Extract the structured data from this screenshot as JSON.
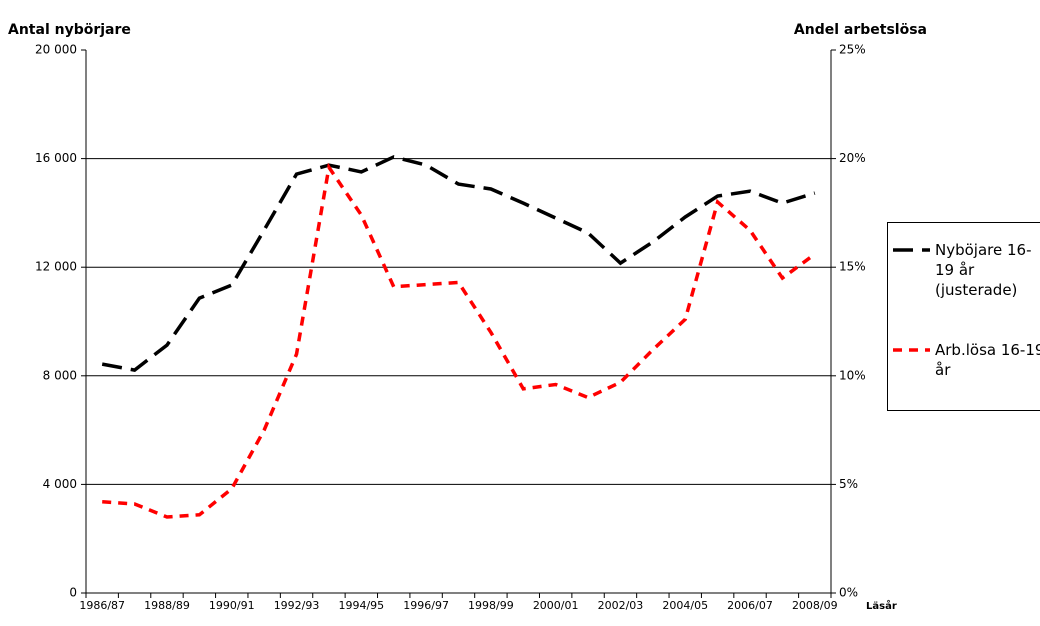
{
  "chart_data": {
    "type": "line",
    "y_label": "Antal nybörjare",
    "y2_label": "Andel arbetslösa",
    "x_label": "Läsår",
    "categories": [
      "1986/87",
      null,
      "1988/89",
      null,
      "1990/91",
      null,
      "1992/93",
      null,
      "1994/95",
      null,
      "1996/97",
      null,
      "1998/99",
      null,
      "2000/01",
      null,
      "2002/03",
      null,
      "2004/05",
      null,
      "2006/07",
      null,
      "2008/09"
    ],
    "series": [
      {
        "name": "Nyböjare 16-19 år (justerade)",
        "color": "#000000",
        "values": [
          8430,
          8210,
          9130,
          10860,
          11340,
          13370,
          15430,
          15760,
          15510,
          16060,
          15760,
          15060,
          14880,
          14360,
          13810,
          13260,
          12150,
          12930,
          13850,
          14620,
          14800,
          14360,
          14730
        ]
      },
      {
        "name": "Arb.lösa 16-19 år",
        "color": "#ff0000",
        "axis": "y2",
        "values": [
          4.2,
          4.1,
          3.5,
          3.6,
          4.8,
          7.5,
          11.0,
          19.6,
          17.4,
          14.1,
          14.2,
          14.3,
          12.0,
          9.4,
          9.6,
          9.0,
          9.7,
          11.2,
          12.6,
          18.0,
          16.7,
          14.5,
          15.6
        ]
      }
    ],
    "ylim": [
      0,
      20000
    ],
    "yticks": [
      {
        "value": 0,
        "label": "0"
      },
      {
        "value": 4000,
        "label": "4 000"
      },
      {
        "value": 8000,
        "label": "8 000"
      },
      {
        "value": 12000,
        "label": "12 000"
      },
      {
        "value": 16000,
        "label": "16 000"
      },
      {
        "value": 20000,
        "label": "20 000"
      }
    ],
    "y2lim": [
      0,
      25
    ],
    "y2ticks": [
      {
        "value": 0,
        "label": "0%"
      },
      {
        "value": 5,
        "label": "5%"
      },
      {
        "value": 10,
        "label": "10%"
      },
      {
        "value": 15,
        "label": "15%"
      },
      {
        "value": 20,
        "label": "20%"
      },
      {
        "value": 25,
        "label": "25%"
      }
    ],
    "grid": true,
    "legend": "right"
  }
}
